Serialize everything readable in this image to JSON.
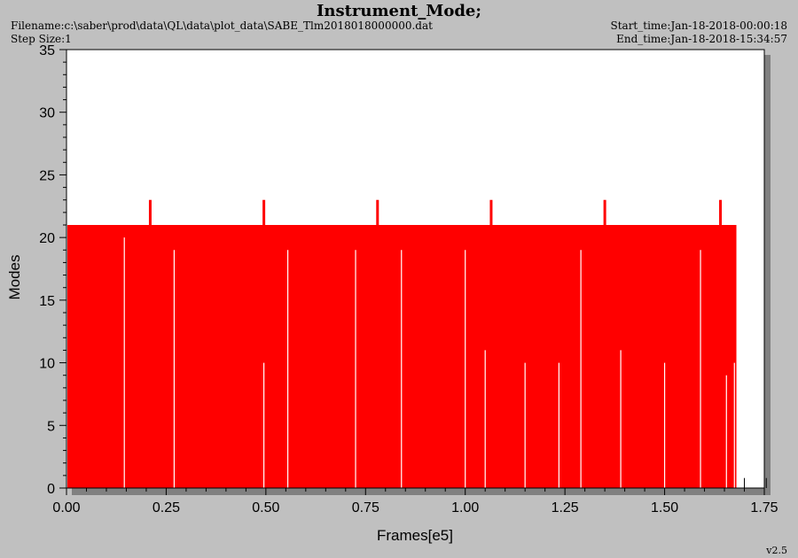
{
  "header": {
    "title": "Instrument_Mode;",
    "filename": "Filename:c:\\saber\\prod\\data\\QL\\data\\plot_data\\SABE_Tlm2018018000000.dat",
    "step_size": "Step Size:1",
    "start_time": "Start_time:Jan-18-2018-00:00:18",
    "end_time": "End_time:Jan-18-2018-15:34:57"
  },
  "version": "v2.5",
  "chart_data": {
    "type": "line",
    "xlabel": "Frames[e5]",
    "ylabel": "Modes",
    "xlim": [
      0,
      1.75
    ],
    "ylim": [
      0,
      35
    ],
    "xticks": [
      "0.00",
      "0.25",
      "0.50",
      "0.75",
      "1.00",
      "1.25",
      "1.50",
      "1.75"
    ],
    "yticks": [
      "0",
      "5",
      "10",
      "15",
      "20",
      "25",
      "30",
      "35"
    ],
    "grid": false,
    "series_color": "#ff0000",
    "baseline_value": 21,
    "baseline_range": [
      0,
      1.68
    ],
    "spikes": [
      {
        "x": 0.21,
        "y": 23
      },
      {
        "x": 0.495,
        "y": 23
      },
      {
        "x": 0.78,
        "y": 23
      },
      {
        "x": 1.065,
        "y": 23
      },
      {
        "x": 1.35,
        "y": 23
      },
      {
        "x": 1.64,
        "y": 23
      }
    ],
    "dips": [
      {
        "x": 0.145,
        "y": 20
      },
      {
        "x": 0.27,
        "y": 19
      },
      {
        "x": 0.495,
        "y": 10
      },
      {
        "x": 0.555,
        "y": 19
      },
      {
        "x": 0.725,
        "y": 19
      },
      {
        "x": 0.84,
        "y": 19
      },
      {
        "x": 1.0,
        "y": 19
      },
      {
        "x": 1.05,
        "y": 11
      },
      {
        "x": 1.15,
        "y": 10
      },
      {
        "x": 1.235,
        "y": 10
      },
      {
        "x": 1.29,
        "y": 19
      },
      {
        "x": 1.39,
        "y": 11
      },
      {
        "x": 1.5,
        "y": 10
      },
      {
        "x": 1.59,
        "y": 19
      },
      {
        "x": 1.655,
        "y": 9
      },
      {
        "x": 1.675,
        "y": 10
      }
    ],
    "tail_points": [
      {
        "x": 1.7,
        "y": 0.8
      },
      {
        "x": 1.755,
        "y": 0.8
      }
    ]
  }
}
